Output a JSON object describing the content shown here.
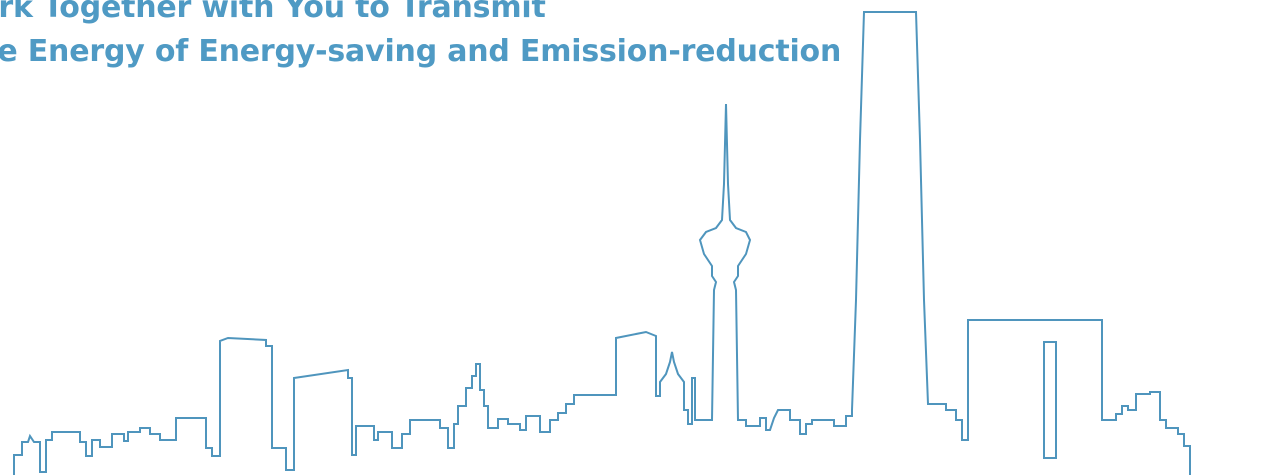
{
  "slogan": {
    "line1": "ork Together with You to Transmit",
    "line2": "ve Energy of Energy-saving and Emission-reduction"
  },
  "colors": {
    "text": "#4f9ac4",
    "skyline_stroke": "#4f95bd",
    "background": "#ffffff"
  },
  "icons": {
    "illustration": "city-skyline-outline"
  }
}
